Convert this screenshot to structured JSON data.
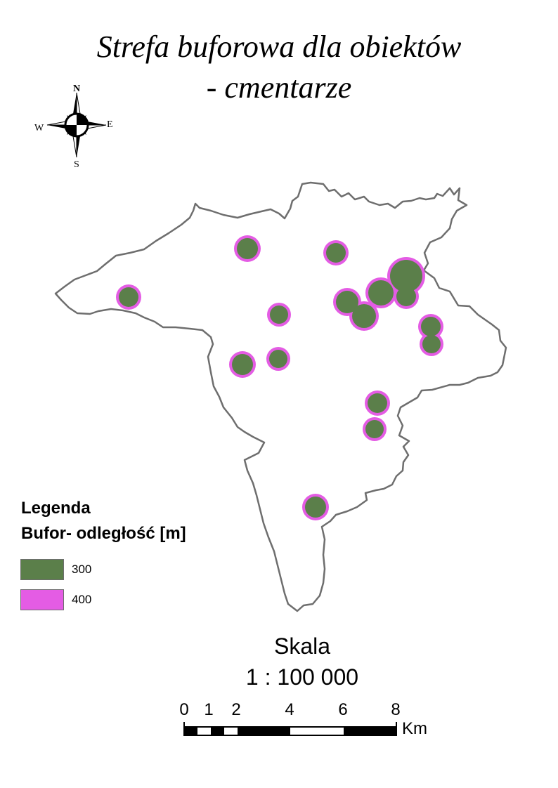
{
  "title": {
    "line1": "Strefa buforowa dla obiektów",
    "line2": "- cmentarze"
  },
  "north_arrow": {
    "n": "N",
    "s": "S",
    "e": "E",
    "w": "W",
    "icon": "compass-rose-icon"
  },
  "legend": {
    "heading": "Legenda",
    "subheading": "Bufor- odległość [m]",
    "items": [
      {
        "label": "300",
        "color": "#5b7f4a"
      },
      {
        "label": "400",
        "color": "#e45ce4"
      }
    ]
  },
  "colors": {
    "boundary": "#6e6e6e",
    "buffer_300": "#5b7f4a",
    "buffer_400": "#e45ce4"
  },
  "scale": {
    "label": "Skala",
    "ratio": "1 : 100 000",
    "ticks": [
      "0",
      "1",
      "2",
      "4",
      "6",
      "8"
    ],
    "unit": "Km"
  }
}
